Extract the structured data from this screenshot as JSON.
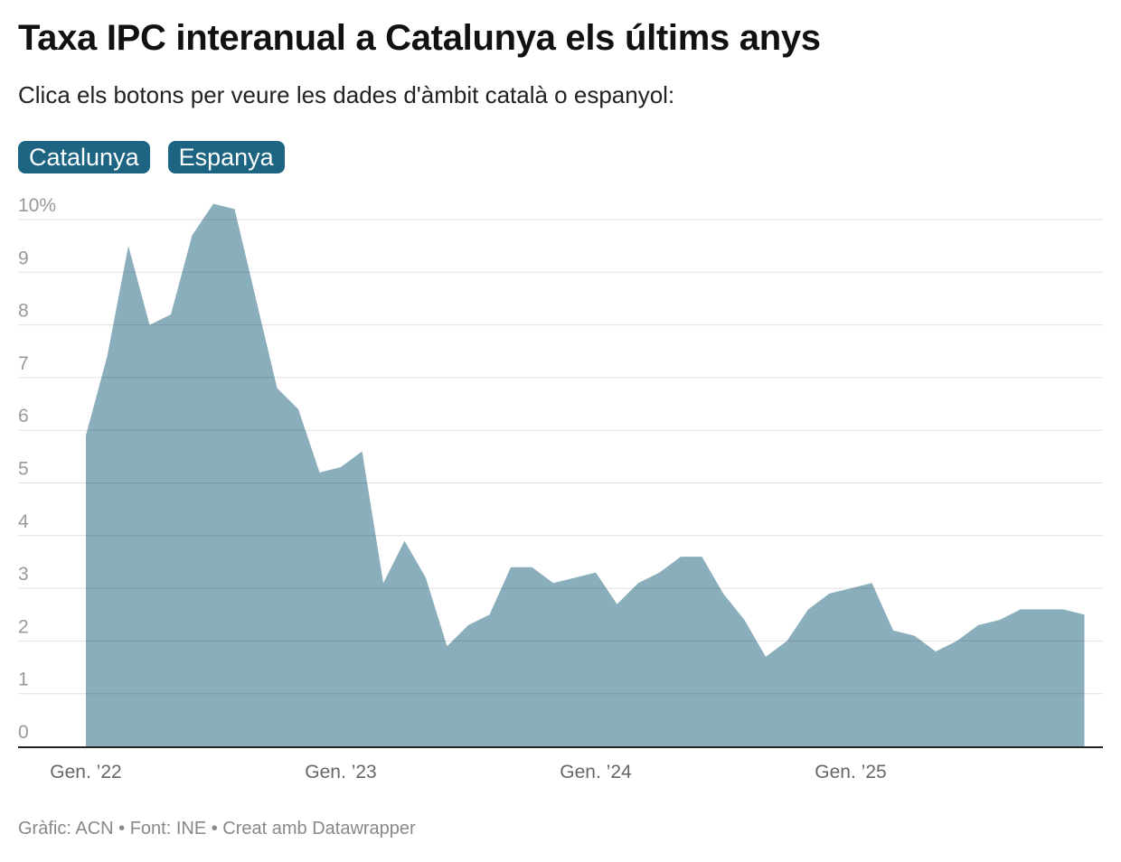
{
  "title": "Taxa IPC interanual a Catalunya els últims anys",
  "subtitle": "Clica els botons per veure les dades d'àmbit català o espanyol:",
  "buttons": [
    {
      "label": "Catalunya",
      "active": true
    },
    {
      "label": "Espanya",
      "active": false
    }
  ],
  "footer": "Gràfic: ACN • Font: INE • Creat amb Datawrapper",
  "colors": {
    "area": "#8aaebb",
    "button": "#1c6481"
  },
  "chart_data": {
    "type": "area",
    "start": "2022-01",
    "frequency": "monthly",
    "x_ticks": [
      {
        "label": "Gen. ’22",
        "month": "2022-01"
      },
      {
        "label": "Gen. ’23",
        "month": "2023-01"
      },
      {
        "label": "Gen. ’24",
        "month": "2024-01"
      },
      {
        "label": "Gen. ’25",
        "month": "2025-01"
      }
    ],
    "y_ticks": [
      "0",
      "1",
      "2",
      "3",
      "4",
      "5",
      "6",
      "7",
      "8",
      "9",
      "10%"
    ],
    "ylim": [
      0,
      10
    ],
    "grid": true,
    "values": [
      5.9,
      7.4,
      9.5,
      8.0,
      8.2,
      9.7,
      10.3,
      10.2,
      8.5,
      6.8,
      6.4,
      5.2,
      5.3,
      5.6,
      3.1,
      3.9,
      3.2,
      1.9,
      2.3,
      2.5,
      3.4,
      3.4,
      3.1,
      3.2,
      3.3,
      2.7,
      3.1,
      3.3,
      3.6,
      3.6,
      2.9,
      2.4,
      1.7,
      2.0,
      2.6,
      2.9,
      3.0,
      3.1,
      2.2,
      2.1,
      1.8,
      2.0,
      2.3,
      2.4,
      2.6,
      2.6,
      2.6,
      2.5
    ]
  }
}
